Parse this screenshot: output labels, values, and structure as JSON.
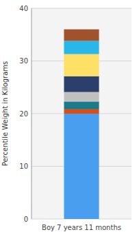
{
  "chart_data": {
    "type": "bar",
    "stacked": true,
    "grid": true,
    "ylabel": "Percentile Weight in Kilograms",
    "categories": [
      "Boy 7 years 11 months"
    ],
    "series": [
      {
        "color": "#4A9EF0",
        "values": [
          20.0
        ]
      },
      {
        "color": "#E84A0C",
        "values": [
          0.8
        ]
      },
      {
        "color": "#1A7A8A",
        "values": [
          1.5
        ]
      },
      {
        "color": "#C0C0C0",
        "values": [
          1.8
        ]
      },
      {
        "color": "#2C3E6B",
        "values": [
          3.0
        ]
      },
      {
        "color": "#FFE066",
        "values": [
          4.2
        ]
      },
      {
        "color": "#29B6E8",
        "values": [
          2.5
        ]
      },
      {
        "color": "#A0522D",
        "values": [
          2.2
        ]
      }
    ],
    "ylim": [
      0,
      40
    ],
    "yticks": [
      0,
      10,
      20,
      30,
      40
    ]
  }
}
